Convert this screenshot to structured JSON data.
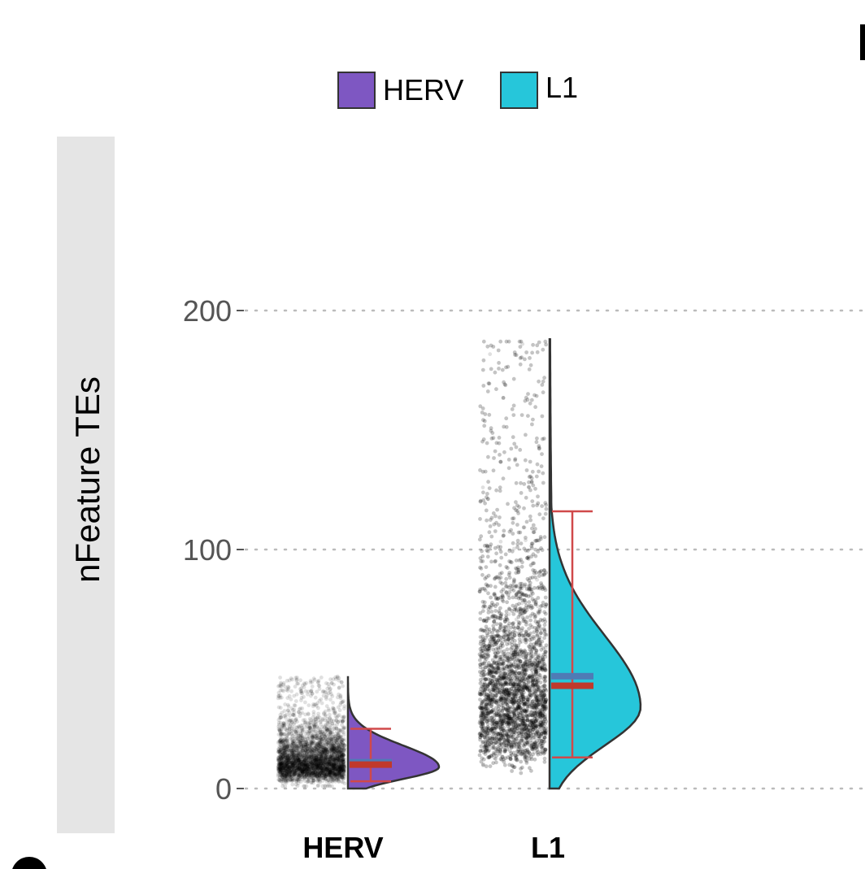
{
  "chart_data": {
    "type": "raincloud",
    "ylabel": "nFeature TEs",
    "y_ticks": [
      0,
      100,
      200
    ],
    "ylim": [
      0,
      200
    ],
    "grid": "horizontal dotted",
    "legend_position": "top",
    "categories": [
      "HERV",
      "L1"
    ],
    "series": [
      {
        "name": "HERV",
        "color": "#7e57c2",
        "point_range": [
          0,
          47
        ],
        "dense_range": [
          2,
          24
        ],
        "density_peak": 9,
        "density_max": 47,
        "mean": 11,
        "median": 10,
        "error_bar": [
          3,
          25
        ]
      },
      {
        "name": "L1",
        "color": "#26c6da",
        "point_range": [
          1,
          187
        ],
        "dense_range": [
          15,
          100
        ],
        "density_peak": 34,
        "density_max": 188,
        "mean": 47,
        "median": 43,
        "error_bar": [
          13,
          116
        ]
      }
    ],
    "mean_bar_color": "#4f7bb5",
    "median_bar_color": "#c0392b",
    "error_bar_color": "#d0494a"
  },
  "legend": {
    "items": [
      {
        "label": "HERV",
        "color": "#7e57c2"
      },
      {
        "label": "L1",
        "color": "#26c6da"
      }
    ]
  },
  "strip": {
    "label": "nFeature TEs"
  }
}
